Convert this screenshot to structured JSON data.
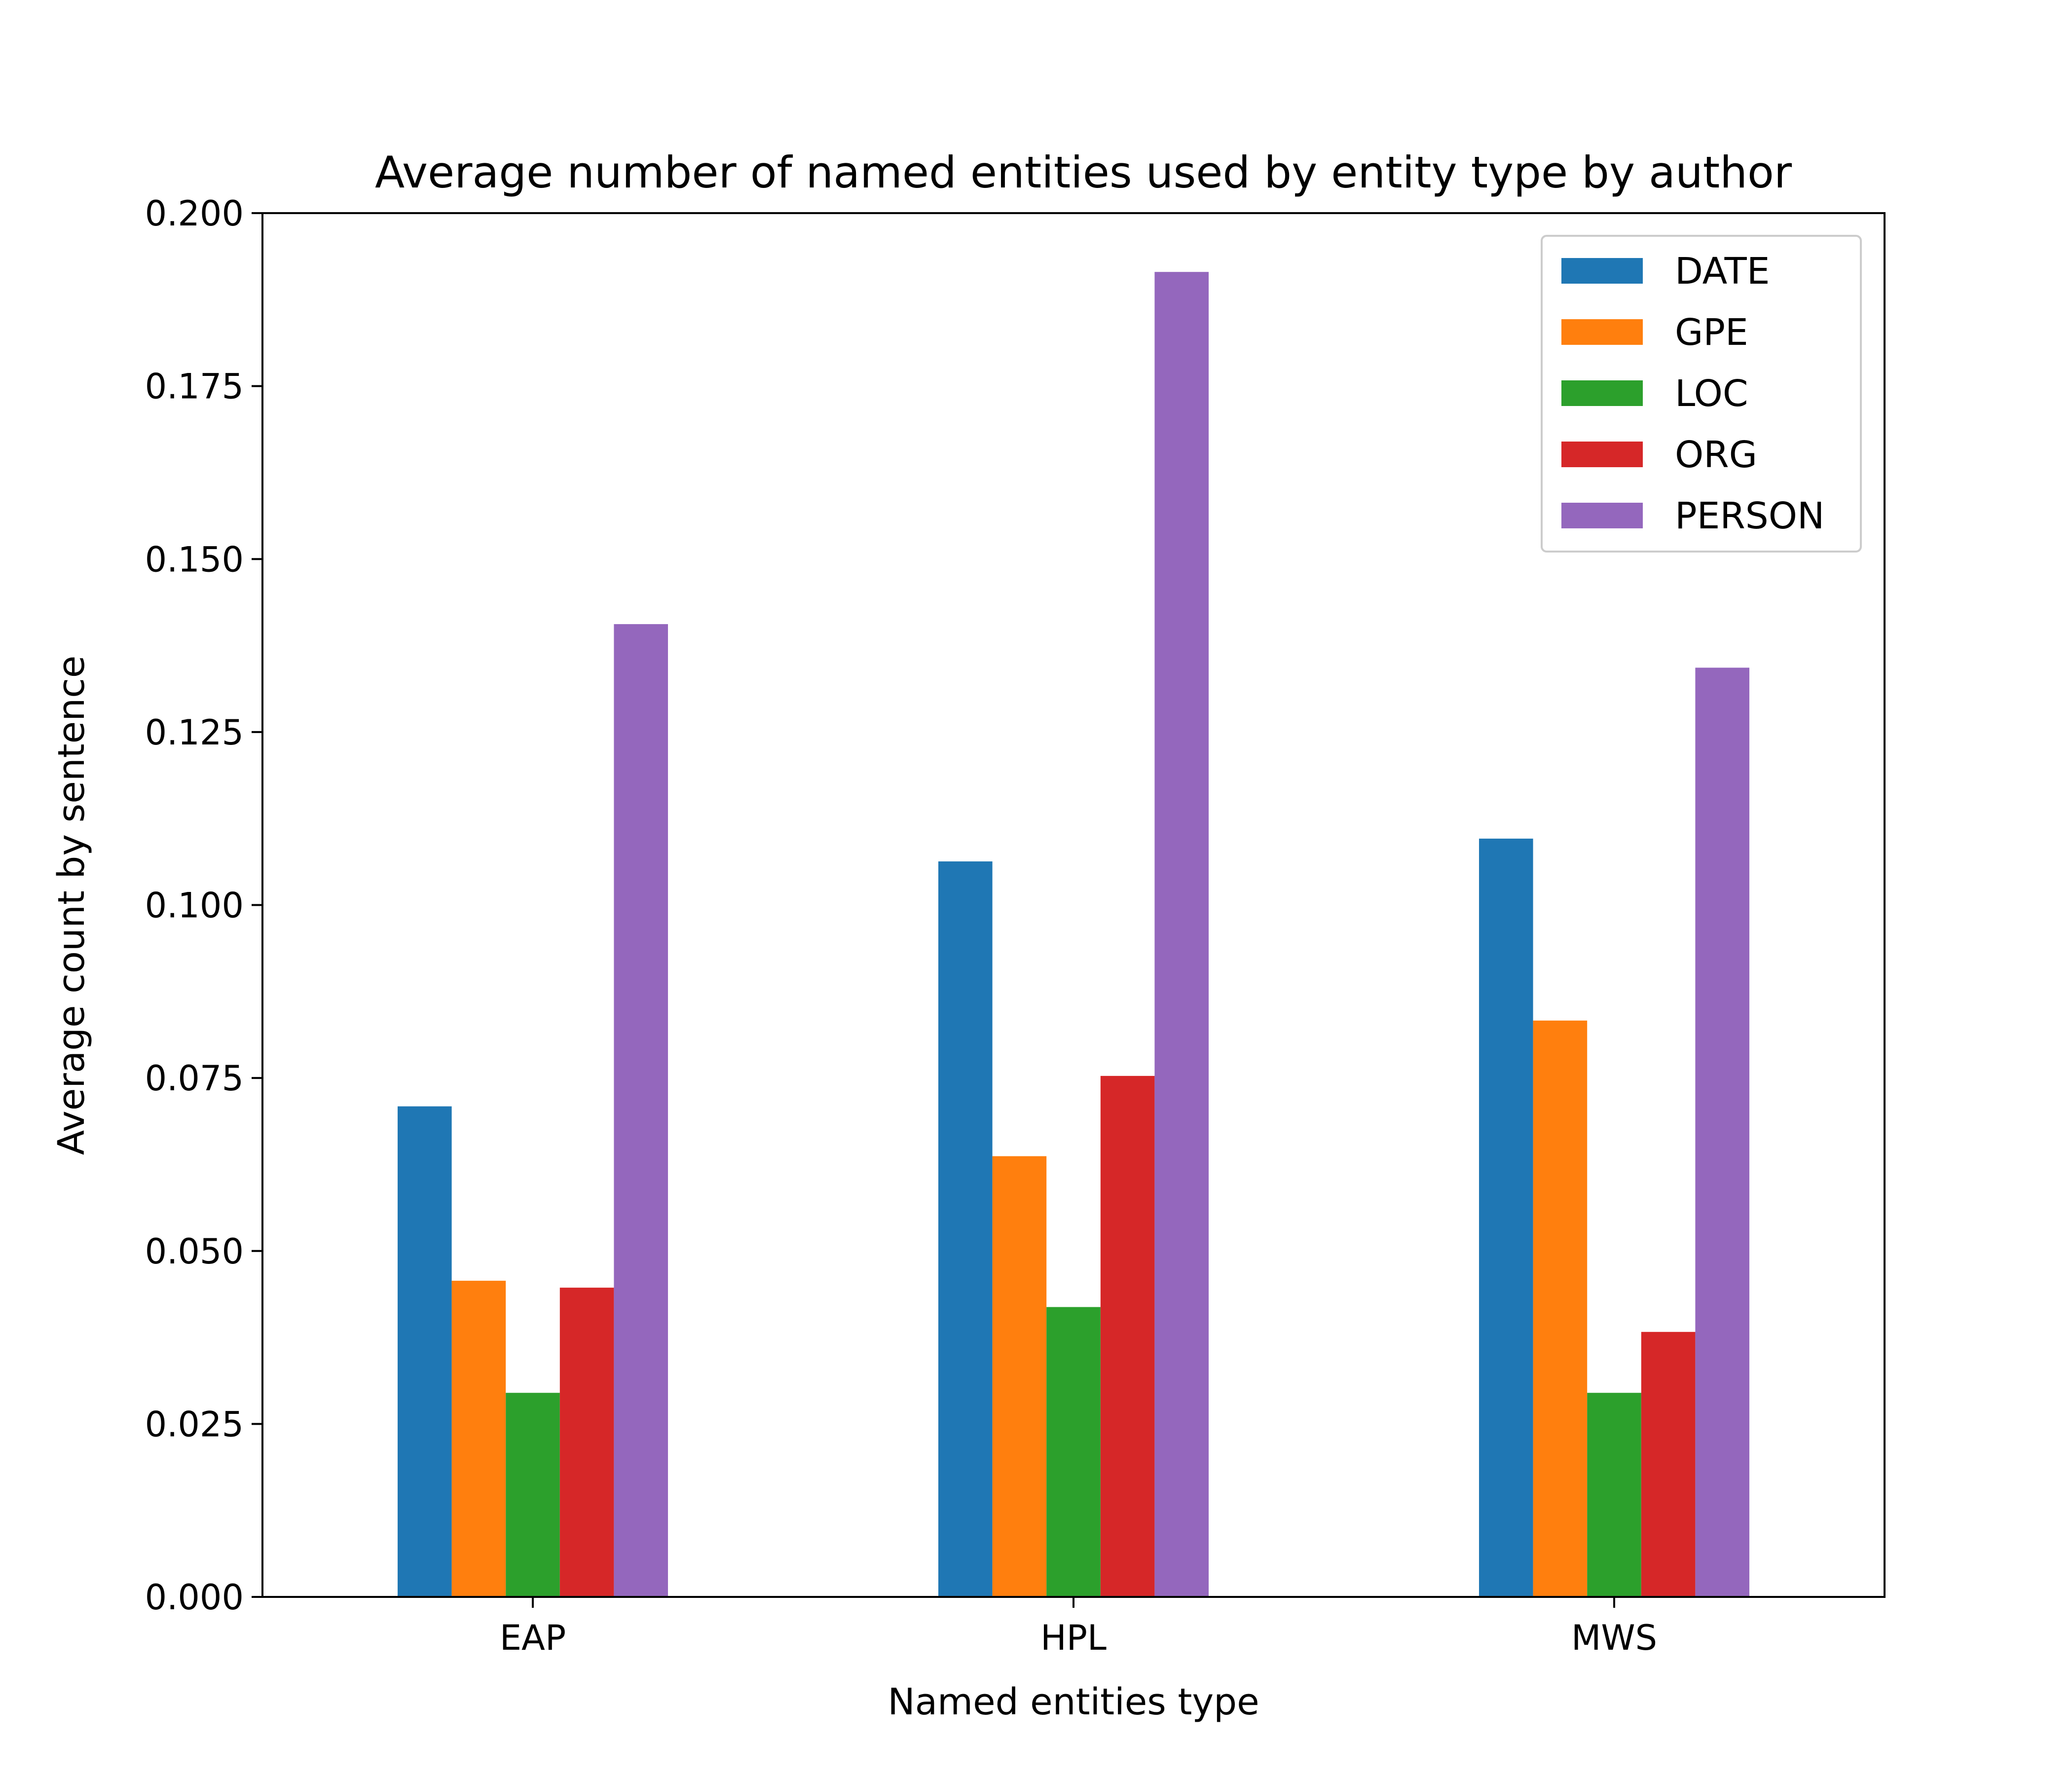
{
  "chart_data": {
    "type": "bar",
    "title": "Average number of named entities used by entity type by author",
    "xlabel": "Named entities type",
    "ylabel": "Average count by sentence",
    "categories": [
      "EAP",
      "HPL",
      "MWS"
    ],
    "ylim": [
      0,
      0.2
    ],
    "yticks": [
      "0.000",
      "0.025",
      "0.050",
      "0.075",
      "0.100",
      "0.125",
      "0.150",
      "0.175",
      "0.200"
    ],
    "grid": false,
    "legend_position": "top-right",
    "series": [
      {
        "name": "DATE",
        "color": "#1f77b4",
        "values": [
          0.0709,
          0.1063,
          0.1096
        ]
      },
      {
        "name": "GPE",
        "color": "#ff7f0e",
        "values": [
          0.0457,
          0.0637,
          0.0833
        ]
      },
      {
        "name": "LOC",
        "color": "#2ca02c",
        "values": [
          0.0295,
          0.0419,
          0.0295
        ]
      },
      {
        "name": "ORG",
        "color": "#d62728",
        "values": [
          0.0447,
          0.0753,
          0.0383
        ]
      },
      {
        "name": "PERSON",
        "color": "#9467bd",
        "values": [
          0.1406,
          0.1915,
          0.1343
        ]
      }
    ]
  }
}
